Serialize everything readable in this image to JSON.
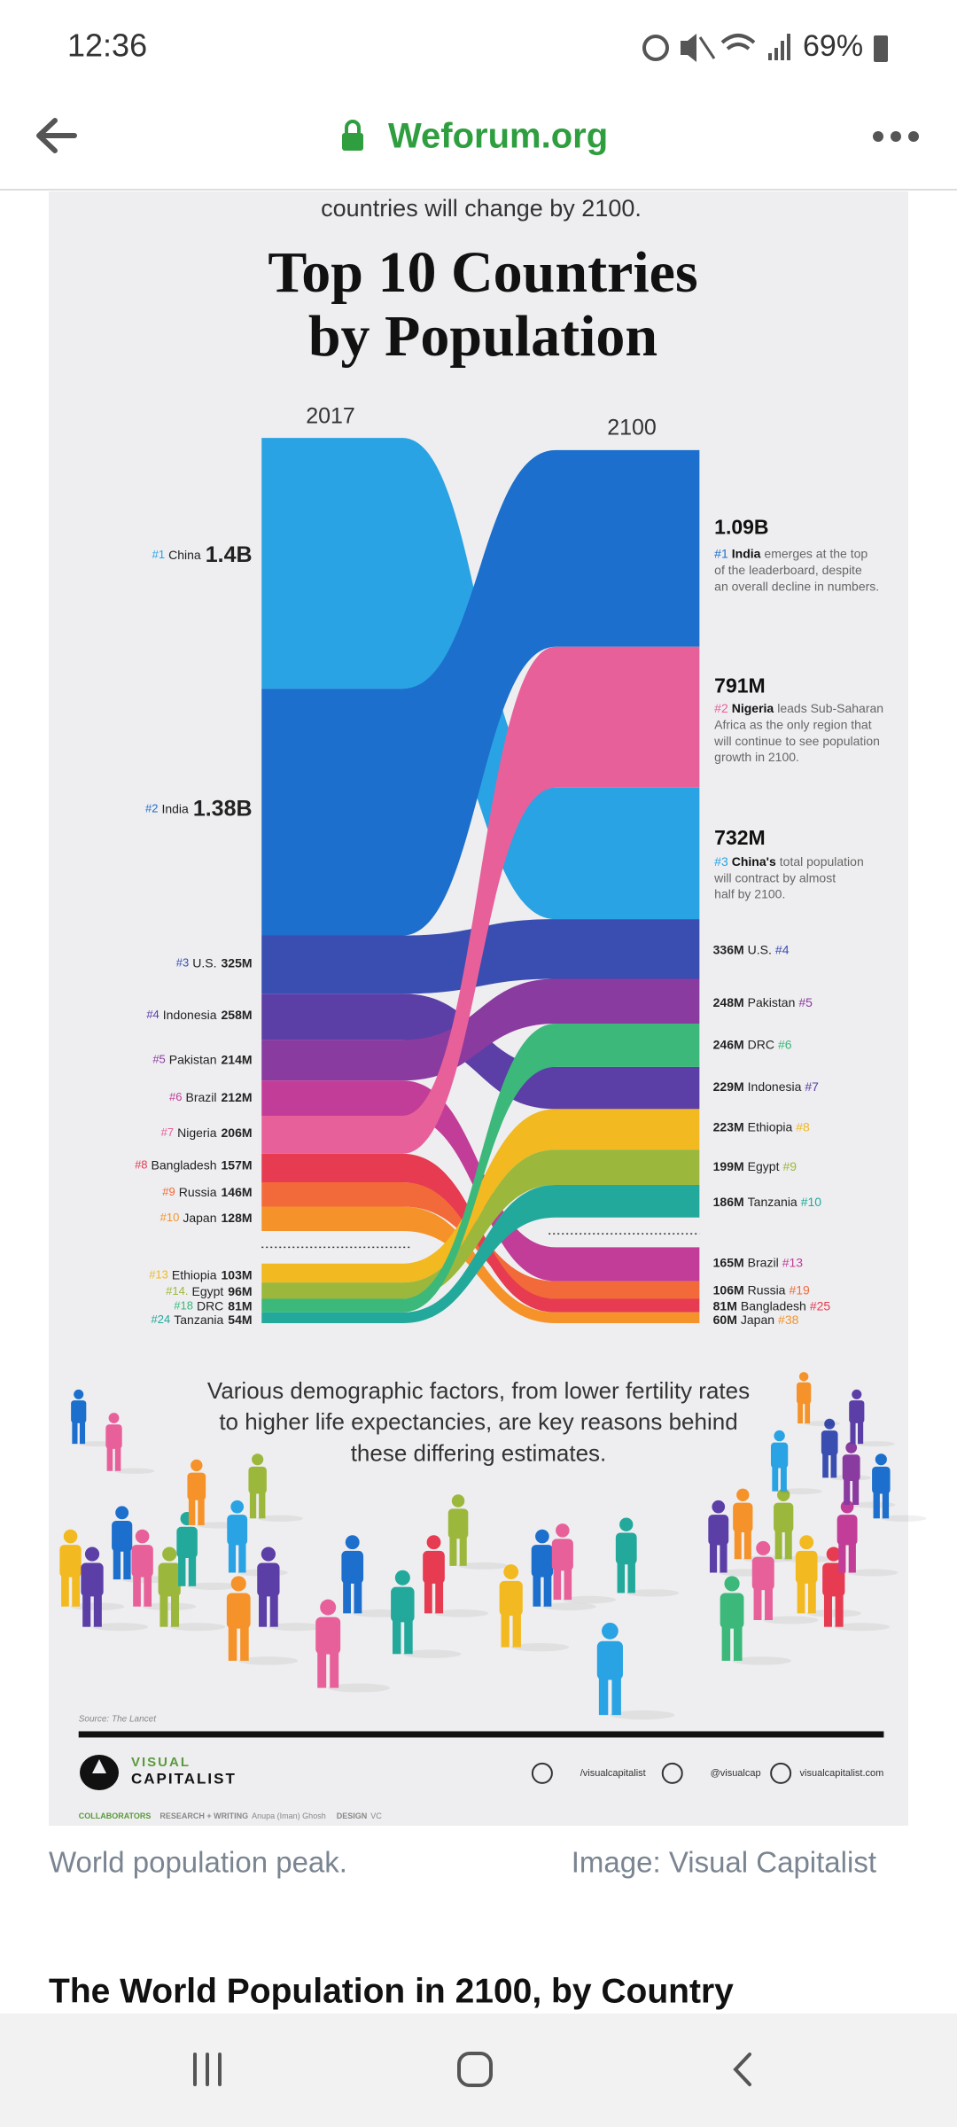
{
  "status_bar": {
    "time": "12:36",
    "battery": "69%"
  },
  "browser": {
    "url": "Weforum.org"
  },
  "infographic": {
    "intro": "countries will change by 2100.",
    "title": [
      "Top 10 Countries",
      "by Population"
    ],
    "year_left": "2017",
    "year_right": "2100",
    "left": [
      {
        "rank": "#1",
        "country": "China",
        "value": "1.4B"
      },
      {
        "rank": "#2",
        "country": "India",
        "value": "1.38B"
      },
      {
        "rank": "#3",
        "country": "U.S.",
        "value": "325M"
      },
      {
        "rank": "#4",
        "country": "Indonesia",
        "value": "258M"
      },
      {
        "rank": "#5",
        "country": "Pakistan",
        "value": "214M"
      },
      {
        "rank": "#6",
        "country": "Brazil",
        "value": "212M"
      },
      {
        "rank": "#7",
        "country": "Nigeria",
        "value": "206M"
      },
      {
        "rank": "#8",
        "country": "Bangladesh",
        "value": "157M"
      },
      {
        "rank": "#9",
        "country": "Russia",
        "value": "146M"
      },
      {
        "rank": "#10",
        "country": "Japan",
        "value": "128M"
      },
      {
        "rank": "#13",
        "country": "Ethiopia",
        "value": "103M"
      },
      {
        "rank": "#14.",
        "country": "Egypt",
        "value": "96M"
      },
      {
        "rank": "#18",
        "country": "DRC",
        "value": "81M"
      },
      {
        "rank": "#24",
        "country": "Tanzania",
        "value": "54M"
      }
    ],
    "right_featured": [
      {
        "value": "1.09B",
        "rank": "#1",
        "country": "India",
        "text": [
          "emerges at the top",
          "of the leaderboard, despite",
          "an overall decline in numbers."
        ]
      },
      {
        "value": "791M",
        "rank": "#2",
        "country": "Nigeria",
        "text": [
          "leads Sub-Saharan",
          "Africa as the only region that",
          "will continue to see population",
          "growth in 2100."
        ]
      },
      {
        "value": "732M",
        "rank": "#3",
        "country": "China's",
        "text": [
          "total population",
          "will contract by almost",
          "half by 2100."
        ]
      }
    ],
    "right": [
      {
        "value": "336M",
        "country": "U.S.",
        "rank": "#4"
      },
      {
        "value": "248M",
        "country": "Pakistan",
        "rank": "#5"
      },
      {
        "value": "246M",
        "country": "DRC",
        "rank": "#6"
      },
      {
        "value": "229M",
        "country": "Indonesia",
        "rank": "#7"
      },
      {
        "value": "223M",
        "country": "Ethiopia",
        "rank": "#8"
      },
      {
        "value": "199M",
        "country": "Egypt",
        "rank": "#9"
      },
      {
        "value": "186M",
        "country": "Tanzania",
        "rank": "#10"
      },
      {
        "value": "165M",
        "country": "Brazil",
        "rank": "#13"
      },
      {
        "value": "106M",
        "country": "Russia",
        "rank": "#19"
      },
      {
        "value": "81M",
        "country": "Bangladesh",
        "rank": "#25"
      },
      {
        "value": "60M",
        "country": "Japan",
        "rank": "#38"
      }
    ],
    "footer_text": [
      "Various demographic factors, from lower fertility rates",
      "to higher life expectancies, are key reasons behind",
      "these differing estimates."
    ],
    "source": "Source: The Lancet",
    "brand": [
      "VISUAL",
      "CAPITALIST"
    ],
    "social": [
      "/visualcapitalist",
      "@visualcap",
      "visualcapitalist.com"
    ],
    "credits": [
      "COLLABORATORS",
      "RESEARCH + WRITING",
      "Anupa (Iman) Ghosh",
      "DESIGN",
      "VC"
    ]
  },
  "caption": {
    "left": "World population peak.",
    "right": "Image: Visual Capitalist"
  },
  "heading": "The World Population in 2100, by Country"
}
